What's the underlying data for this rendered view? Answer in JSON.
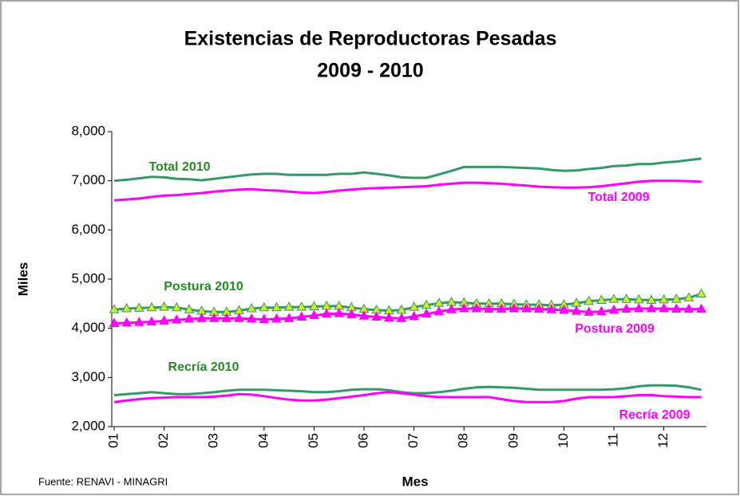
{
  "chart_data": {
    "type": "line",
    "title": [
      "Existencias de Reproductoras Pesadas",
      "2009 - 2010"
    ],
    "y_label": "Miles",
    "x_label": "Mes",
    "source": "Fuente: RENAVI - MINAGRI",
    "categories": [
      "01",
      null,
      null,
      null,
      "02",
      null,
      null,
      null,
      "03",
      null,
      null,
      null,
      "04",
      null,
      null,
      null,
      "05",
      null,
      null,
      null,
      "06",
      null,
      null,
      null,
      "07",
      null,
      null,
      null,
      "08",
      null,
      null,
      null,
      "09",
      null,
      null,
      null,
      "10",
      null,
      null,
      null,
      "11",
      null,
      null,
      null,
      "12",
      null,
      null,
      null
    ],
    "ylim": [
      2000,
      8000
    ],
    "yticks": [
      {
        "value": 2000,
        "label": "2,000"
      },
      {
        "value": 3000,
        "label": "3,000"
      },
      {
        "value": 4000,
        "label": "4,000"
      },
      {
        "value": 5000,
        "label": "5,000"
      },
      {
        "value": 6000,
        "label": "6,000"
      },
      {
        "value": 7000,
        "label": "7,000"
      },
      {
        "value": 8000,
        "label": "8,000"
      }
    ],
    "grid": false,
    "series": [
      {
        "name": "Total 2010",
        "color": "#339966",
        "label_color": "#228b22",
        "values": [
          7000,
          7020,
          7050,
          7080,
          7070,
          7040,
          7030,
          7010,
          7040,
          7070,
          7100,
          7130,
          7140,
          7140,
          7120,
          7120,
          7120,
          7120,
          7140,
          7140,
          7170,
          7140,
          7110,
          7070,
          7060,
          7060,
          7130,
          7200,
          7280,
          7280,
          7280,
          7280,
          7270,
          7260,
          7250,
          7220,
          7200,
          7210,
          7240,
          7260,
          7300,
          7310,
          7340,
          7340,
          7370,
          7390,
          7420,
          7450
        ]
      },
      {
        "name": "Total 2009",
        "color": "#ff00ff",
        "label_color": "#ff00ff",
        "values": [
          6600,
          6620,
          6640,
          6670,
          6700,
          6710,
          6730,
          6750,
          6780,
          6800,
          6820,
          6830,
          6810,
          6800,
          6780,
          6760,
          6750,
          6770,
          6800,
          6820,
          6840,
          6850,
          6860,
          6870,
          6880,
          6890,
          6920,
          6940,
          6960,
          6960,
          6950,
          6940,
          6920,
          6900,
          6880,
          6870,
          6860,
          6860,
          6870,
          6890,
          6920,
          6950,
          6980,
          7000,
          7000,
          7000,
          6990,
          6980
        ]
      },
      {
        "name": "Postura 2010",
        "color": "#339966",
        "label_color": "#228b22",
        "marker": "triangle",
        "marker_color": "#ccee22",
        "values": [
          4380,
          4400,
          4410,
          4420,
          4430,
          4420,
          4380,
          4350,
          4330,
          4330,
          4360,
          4400,
          4420,
          4420,
          4430,
          4430,
          4440,
          4450,
          4450,
          4420,
          4390,
          4370,
          4360,
          4370,
          4430,
          4470,
          4510,
          4530,
          4520,
          4500,
          4500,
          4500,
          4490,
          4480,
          4480,
          4470,
          4480,
          4510,
          4550,
          4570,
          4590,
          4590,
          4580,
          4570,
          4580,
          4590,
          4620,
          4700
        ]
      },
      {
        "name": "Postura 2009",
        "color": "#ff00ff",
        "label_color": "#ff00ff",
        "marker": "triangle",
        "marker_color": "#ff00ff",
        "values": [
          4100,
          4110,
          4120,
          4130,
          4150,
          4170,
          4190,
          4200,
          4200,
          4200,
          4200,
          4190,
          4180,
          4190,
          4200,
          4230,
          4260,
          4290,
          4300,
          4280,
          4250,
          4230,
          4210,
          4200,
          4240,
          4290,
          4340,
          4380,
          4400,
          4400,
          4390,
          4390,
          4400,
          4400,
          4390,
          4380,
          4370,
          4350,
          4330,
          4340,
          4370,
          4390,
          4400,
          4400,
          4400,
          4390,
          4390,
          4390
        ]
      },
      {
        "name": "Recría 2010",
        "color": "#339966",
        "label_color": "#228b22",
        "values": [
          2640,
          2660,
          2680,
          2700,
          2680,
          2660,
          2660,
          2680,
          2700,
          2730,
          2750,
          2750,
          2750,
          2740,
          2730,
          2720,
          2700,
          2700,
          2720,
          2750,
          2760,
          2760,
          2740,
          2700,
          2680,
          2680,
          2700,
          2730,
          2770,
          2800,
          2810,
          2800,
          2790,
          2770,
          2750,
          2750,
          2750,
          2750,
          2750,
          2750,
          2760,
          2780,
          2820,
          2840,
          2840,
          2830,
          2800,
          2750
        ]
      },
      {
        "name": "Recría 2009",
        "color": "#ff00ff",
        "label_color": "#ff00ff",
        "values": [
          2500,
          2530,
          2560,
          2580,
          2590,
          2600,
          2600,
          2600,
          2610,
          2630,
          2660,
          2650,
          2620,
          2580,
          2550,
          2530,
          2530,
          2550,
          2580,
          2610,
          2640,
          2680,
          2700,
          2680,
          2650,
          2620,
          2600,
          2600,
          2600,
          2600,
          2600,
          2560,
          2520,
          2500,
          2500,
          2500,
          2520,
          2570,
          2600,
          2600,
          2600,
          2620,
          2640,
          2640,
          2620,
          2610,
          2600,
          2600
        ]
      }
    ]
  }
}
